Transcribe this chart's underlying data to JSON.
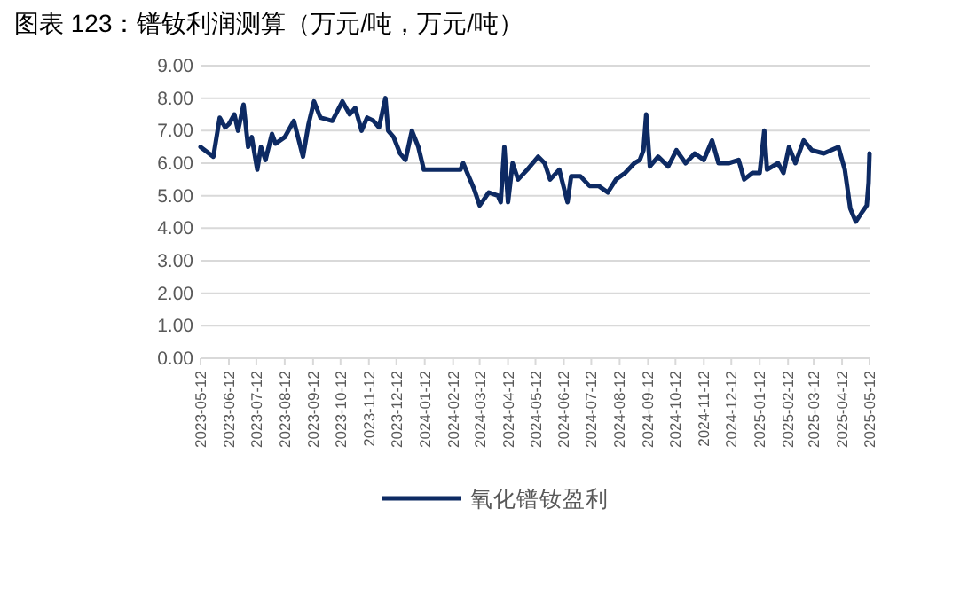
{
  "chart_data": {
    "type": "line",
    "title": "图表 123：镨钕利润测算（万元/吨，万元/吨）",
    "xlim": [
      "2023-05-12",
      "2025-05-12"
    ],
    "xticks": [
      "2023-05-12",
      "2023-06-12",
      "2023-07-12",
      "2023-08-12",
      "2023-09-12",
      "2023-10-12",
      "2023-11-12",
      "2023-12-12",
      "2024-01-12",
      "2024-02-12",
      "2024-03-12",
      "2024-04-12",
      "2024-05-12",
      "2024-06-12",
      "2024-07-12",
      "2024-08-12",
      "2024-09-12",
      "2024-10-12",
      "2024-11-12",
      "2024-12-12",
      "2025-01-12",
      "2025-02-12",
      "2025-03-12",
      "2025-04-12",
      "2025-05-12"
    ],
    "ylim": [
      0,
      9
    ],
    "yticks": [
      {
        "value": 0,
        "label": "0.00"
      },
      {
        "value": 1,
        "label": "1.00"
      },
      {
        "value": 2,
        "label": "2.00"
      },
      {
        "value": 3,
        "label": "3.00"
      },
      {
        "value": 4,
        "label": "4.00"
      },
      {
        "value": 5,
        "label": "5.00"
      },
      {
        "value": 6,
        "label": "6.00"
      },
      {
        "value": 7,
        "label": "7.00"
      },
      {
        "value": 8,
        "label": "8.00"
      },
      {
        "value": 9,
        "label": "9.00"
      }
    ],
    "grid": "y",
    "legend": "bottom",
    "line_style": "solid",
    "marker": "none",
    "series": [
      {
        "name": "氧化镨钕盈利",
        "color": "#0d2a63",
        "x": [
          "2023-05-12",
          "2023-05-26",
          "2023-06-02",
          "2023-06-08",
          "2023-06-12",
          "2023-06-18",
          "2023-06-22",
          "2023-06-28",
          "2023-07-03",
          "2023-07-07",
          "2023-07-13",
          "2023-07-17",
          "2023-07-22",
          "2023-07-29",
          "2023-08-02",
          "2023-08-12",
          "2023-08-22",
          "2023-09-01",
          "2023-09-07",
          "2023-09-13",
          "2023-09-20",
          "2023-10-03",
          "2023-10-14",
          "2023-10-22",
          "2023-10-28",
          "2023-11-04",
          "2023-11-10",
          "2023-11-17",
          "2023-11-23",
          "2023-11-30",
          "2023-12-03",
          "2023-12-09",
          "2023-12-16",
          "2023-12-22",
          "2023-12-29",
          "2024-01-05",
          "2024-01-11",
          "2024-01-21",
          "2024-02-20",
          "2024-02-23",
          "2024-02-29",
          "2024-03-06",
          "2024-03-12",
          "2024-03-22",
          "2024-04-01",
          "2024-04-04",
          "2024-04-08",
          "2024-04-12",
          "2024-04-17",
          "2024-04-23",
          "2024-05-03",
          "2024-05-15",
          "2024-05-22",
          "2024-05-28",
          "2024-06-07",
          "2024-06-16",
          "2024-06-20",
          "2024-06-30",
          "2024-07-10",
          "2024-07-20",
          "2024-07-30",
          "2024-08-08",
          "2024-08-18",
          "2024-08-28",
          "2024-09-03",
          "2024-09-07",
          "2024-09-10",
          "2024-09-14",
          "2024-09-23",
          "2024-10-04",
          "2024-10-13",
          "2024-10-23",
          "2024-11-02",
          "2024-11-12",
          "2024-11-21",
          "2024-11-28",
          "2024-12-09",
          "2024-12-20",
          "2024-12-26",
          "2025-01-04",
          "2025-01-12",
          "2025-01-17",
          "2025-01-20",
          "2025-02-01",
          "2025-02-07",
          "2025-02-13",
          "2025-02-20",
          "2025-03-01",
          "2025-03-10",
          "2025-03-23",
          "2025-04-08",
          "2025-04-15",
          "2025-04-21",
          "2025-04-27",
          "2025-05-04",
          "2025-05-09",
          "2025-05-11",
          "2025-05-12"
        ],
        "values": [
          6.5,
          6.2,
          7.4,
          7.1,
          7.2,
          7.5,
          7.0,
          7.8,
          6.5,
          6.8,
          5.8,
          6.5,
          6.1,
          6.9,
          6.6,
          6.8,
          7.3,
          6.2,
          7.2,
          7.9,
          7.4,
          7.3,
          7.9,
          7.5,
          7.7,
          7.0,
          7.4,
          7.3,
          7.1,
          8.0,
          7.0,
          6.8,
          6.3,
          6.1,
          7.0,
          6.5,
          5.8,
          5.8,
          5.8,
          6.0,
          5.6,
          5.2,
          4.7,
          5.1,
          5.0,
          4.8,
          6.5,
          4.8,
          6.0,
          5.5,
          5.8,
          6.2,
          6.0,
          5.5,
          5.8,
          4.8,
          5.6,
          5.6,
          5.3,
          5.3,
          5.1,
          5.5,
          5.7,
          6.0,
          6.1,
          6.4,
          7.5,
          5.9,
          6.2,
          5.9,
          6.4,
          6.0,
          6.3,
          6.1,
          6.7,
          6.0,
          6.0,
          6.1,
          5.5,
          5.7,
          5.7,
          7.0,
          5.8,
          6.0,
          5.7,
          6.5,
          6.0,
          6.7,
          6.4,
          6.3,
          6.5,
          5.8,
          4.6,
          4.2,
          4.5,
          4.7,
          5.4,
          6.3
        ]
      }
    ]
  }
}
